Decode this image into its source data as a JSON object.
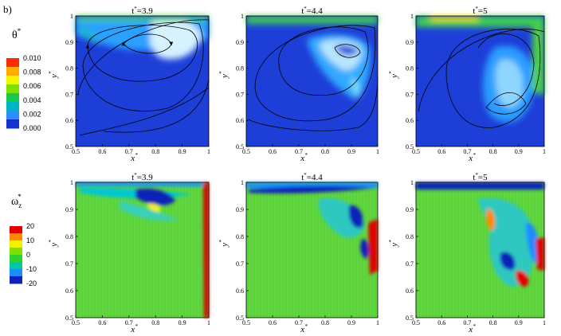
{
  "figure_label": "b)",
  "rows": [
    {
      "variable_symbol": "θ",
      "variable_superscript": "*",
      "colorbar": {
        "labels": [
          "0.010",
          "0.008",
          "0.006",
          "0.004",
          "0.002",
          "0.000"
        ],
        "colors": [
          "#ff2a00",
          "#ffae00",
          "#f5f500",
          "#7fe000",
          "#19c850",
          "#00b4c8",
          "#2f8cff",
          "#1330d0"
        ]
      },
      "panels": [
        {
          "title_base": "t",
          "title_sup": "*",
          "title_value": "=3.9"
        },
        {
          "title_base": "t",
          "title_sup": "*",
          "title_value": "=4.4"
        },
        {
          "title_base": "t",
          "title_sup": "*",
          "title_value": "=5"
        }
      ]
    },
    {
      "variable_symbol": "ω",
      "variable_subscript": "z",
      "variable_superscript": "*",
      "colorbar": {
        "labels": [
          "20",
          "10",
          "0",
          "-10",
          "-20"
        ],
        "colors": [
          "#e00000",
          "#ff8a00",
          "#f2f200",
          "#7de000",
          "#2ed12e",
          "#00c8a0",
          "#1e8cff",
          "#1020b8"
        ]
      },
      "panels": [
        {
          "title_base": "t",
          "title_sup": "*",
          "title_value": "=3.9"
        },
        {
          "title_base": "t",
          "title_sup": "*",
          "title_value": "=4.4"
        },
        {
          "title_base": "t",
          "title_sup": "*",
          "title_value": "=5"
        }
      ]
    }
  ],
  "x_axis": {
    "label": "x",
    "label_sup": "*",
    "ticks": [
      "0.5",
      "0.6",
      "0.7",
      "0.8",
      "0.9",
      "1"
    ]
  },
  "y_axis": {
    "label": "y",
    "label_sup": "*",
    "ticks": [
      "0.5",
      "0.6",
      "0.7",
      "0.8",
      "0.9",
      "1"
    ]
  },
  "field_colors": {
    "theta_background": "#1d3fd8",
    "vorticity_background": "#5ad23c"
  }
}
